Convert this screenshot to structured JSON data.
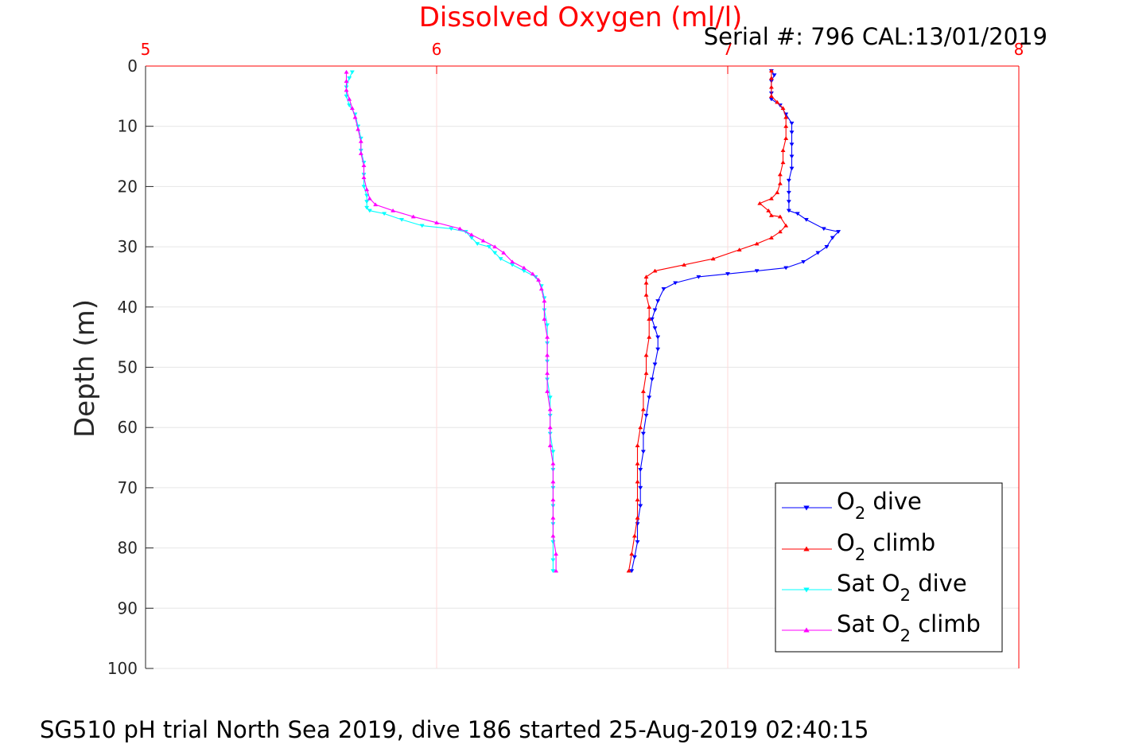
{
  "chart_data": {
    "type": "line",
    "title": "Dissolved Oxygen (ml/l)",
    "subtitle": "Serial #: 796  CAL:13/01/2019",
    "footer": "SG510 pH trial North Sea 2019, dive 186 started 25-Aug-2019 02:40:15",
    "xlabel": "",
    "ylabel": "Depth (m)",
    "xlim": [
      5,
      8
    ],
    "ylim": [
      0,
      100
    ],
    "y_reversed": true,
    "x_axis_position": "top",
    "x_ticks": [
      "5",
      "6",
      "7",
      "8"
    ],
    "y_ticks": [
      "0",
      "10",
      "20",
      "30",
      "40",
      "50",
      "60",
      "70",
      "80",
      "90",
      "100"
    ],
    "grid": true,
    "legend_position": "bottom-right",
    "series": [
      {
        "name": "O2 dive",
        "legend_prefix": "O",
        "legend_sub": "2",
        "legend_suffix": " dive",
        "color": "#0000ff",
        "marker": "triangle-down",
        "points": [
          [
            7.15,
            0.8
          ],
          [
            7.16,
            1.5
          ],
          [
            7.15,
            2.5
          ],
          [
            7.15,
            4.5
          ],
          [
            7.15,
            5.5
          ],
          [
            7.18,
            6.5
          ],
          [
            7.2,
            8.0
          ],
          [
            7.22,
            9.5
          ],
          [
            7.22,
            11.0
          ],
          [
            7.22,
            13.0
          ],
          [
            7.22,
            15.0
          ],
          [
            7.22,
            17.0
          ],
          [
            7.21,
            19.0
          ],
          [
            7.21,
            21.0
          ],
          [
            7.21,
            22.5
          ],
          [
            7.21,
            24.0
          ],
          [
            7.24,
            24.5
          ],
          [
            7.27,
            25.5
          ],
          [
            7.33,
            27.0
          ],
          [
            7.38,
            27.5
          ],
          [
            7.36,
            28.5
          ],
          [
            7.34,
            30.0
          ],
          [
            7.31,
            31.0
          ],
          [
            7.26,
            32.5
          ],
          [
            7.2,
            33.5
          ],
          [
            7.1,
            34.0
          ],
          [
            7.0,
            34.5
          ],
          [
            6.9,
            35.0
          ],
          [
            6.82,
            36.0
          ],
          [
            6.78,
            37.0
          ],
          [
            6.76,
            39.0
          ],
          [
            6.75,
            40.5
          ],
          [
            6.74,
            42.0
          ],
          [
            6.75,
            43.5
          ],
          [
            6.76,
            45.0
          ],
          [
            6.76,
            47.0
          ],
          [
            6.75,
            49.5
          ],
          [
            6.74,
            52.0
          ],
          [
            6.73,
            55.0
          ],
          [
            6.72,
            58.0
          ],
          [
            6.71,
            61.0
          ],
          [
            6.71,
            64.0
          ],
          [
            6.7,
            67.0
          ],
          [
            6.7,
            70.0
          ],
          [
            6.7,
            73.0
          ],
          [
            6.69,
            76.0
          ],
          [
            6.69,
            79.0
          ],
          [
            6.68,
            81.5
          ],
          [
            6.67,
            83.8
          ]
        ]
      },
      {
        "name": "O2 climb",
        "legend_prefix": "O",
        "legend_sub": "2",
        "legend_suffix": " climb",
        "color": "#ff0000",
        "marker": "triangle-up",
        "points": [
          [
            6.66,
            83.8
          ],
          [
            6.67,
            81.0
          ],
          [
            6.68,
            78.0
          ],
          [
            6.69,
            75.0
          ],
          [
            6.69,
            72.0
          ],
          [
            6.69,
            69.0
          ],
          [
            6.69,
            66.0
          ],
          [
            6.69,
            63.0
          ],
          [
            6.7,
            60.0
          ],
          [
            6.71,
            57.0
          ],
          [
            6.71,
            54.0
          ],
          [
            6.72,
            51.0
          ],
          [
            6.72,
            48.0
          ],
          [
            6.73,
            45.0
          ],
          [
            6.73,
            42.0
          ],
          [
            6.73,
            40.0
          ],
          [
            6.72,
            38.0
          ],
          [
            6.72,
            36.0
          ],
          [
            6.72,
            35.0
          ],
          [
            6.75,
            34.0
          ],
          [
            6.85,
            33.0
          ],
          [
            6.95,
            32.0
          ],
          [
            7.04,
            30.5
          ],
          [
            7.1,
            29.5
          ],
          [
            7.15,
            28.5
          ],
          [
            7.18,
            27.5
          ],
          [
            7.2,
            26.5
          ],
          [
            7.18,
            25.0
          ],
          [
            7.15,
            24.8
          ],
          [
            7.14,
            24.0
          ],
          [
            7.11,
            22.8
          ],
          [
            7.15,
            22.0
          ],
          [
            7.17,
            21.0
          ],
          [
            7.18,
            19.5
          ],
          [
            7.18,
            18.0
          ],
          [
            7.19,
            16.0
          ],
          [
            7.19,
            14.0
          ],
          [
            7.2,
            12.0
          ],
          [
            7.2,
            10.0
          ],
          [
            7.2,
            8.5
          ],
          [
            7.19,
            7.0
          ],
          [
            7.17,
            6.0
          ],
          [
            7.15,
            5.0
          ],
          [
            7.15,
            3.5
          ],
          [
            7.15,
            2.0
          ],
          [
            7.15,
            0.8
          ]
        ]
      },
      {
        "name": "Sat O2 dive",
        "legend_prefix": "Sat O",
        "legend_sub": "2",
        "legend_suffix": " dive",
        "color": "#00ffff",
        "marker": "triangle-down",
        "points": [
          [
            5.71,
            1.0
          ],
          [
            5.7,
            2.0
          ],
          [
            5.69,
            3.5
          ],
          [
            5.69,
            5.0
          ],
          [
            5.7,
            6.5
          ],
          [
            5.72,
            8.0
          ],
          [
            5.73,
            10.0
          ],
          [
            5.74,
            12.0
          ],
          [
            5.74,
            14.0
          ],
          [
            5.75,
            16.0
          ],
          [
            5.75,
            18.0
          ],
          [
            5.75,
            20.0
          ],
          [
            5.76,
            21.5
          ],
          [
            5.76,
            22.5
          ],
          [
            5.76,
            23.5
          ],
          [
            5.77,
            24.0
          ],
          [
            5.82,
            24.5
          ],
          [
            5.88,
            25.5
          ],
          [
            5.95,
            26.5
          ],
          [
            6.05,
            27.0
          ],
          [
            6.1,
            27.5
          ],
          [
            6.12,
            28.5
          ],
          [
            6.14,
            29.5
          ],
          [
            6.18,
            30.0
          ],
          [
            6.2,
            31.0
          ],
          [
            6.22,
            32.0
          ],
          [
            6.26,
            33.0
          ],
          [
            6.3,
            34.0
          ],
          [
            6.34,
            35.0
          ],
          [
            6.36,
            36.5
          ],
          [
            6.37,
            38.5
          ],
          [
            6.37,
            40.5
          ],
          [
            6.38,
            43.0
          ],
          [
            6.38,
            46.0
          ],
          [
            6.38,
            49.0
          ],
          [
            6.38,
            52.0
          ],
          [
            6.39,
            55.0
          ],
          [
            6.39,
            58.0
          ],
          [
            6.39,
            61.0
          ],
          [
            6.4,
            64.0
          ],
          [
            6.4,
            67.0
          ],
          [
            6.4,
            70.0
          ],
          [
            6.4,
            73.0
          ],
          [
            6.4,
            76.0
          ],
          [
            6.4,
            79.0
          ],
          [
            6.4,
            82.0
          ],
          [
            6.4,
            83.8
          ]
        ]
      },
      {
        "name": "Sat O2 climb",
        "legend_prefix": "Sat O",
        "legend_sub": "2",
        "legend_suffix": " climb",
        "color": "#ff00ff",
        "marker": "triangle-up",
        "points": [
          [
            6.41,
            83.8
          ],
          [
            6.41,
            81.0
          ],
          [
            6.4,
            78.0
          ],
          [
            6.4,
            75.0
          ],
          [
            6.4,
            72.0
          ],
          [
            6.4,
            69.0
          ],
          [
            6.4,
            66.0
          ],
          [
            6.39,
            63.0
          ],
          [
            6.39,
            60.0
          ],
          [
            6.39,
            57.0
          ],
          [
            6.38,
            54.0
          ],
          [
            6.38,
            51.0
          ],
          [
            6.38,
            48.0
          ],
          [
            6.38,
            45.0
          ],
          [
            6.37,
            42.0
          ],
          [
            6.37,
            39.0
          ],
          [
            6.36,
            37.0
          ],
          [
            6.35,
            35.5
          ],
          [
            6.33,
            34.5
          ],
          [
            6.3,
            33.5
          ],
          [
            6.26,
            32.5
          ],
          [
            6.23,
            31.0
          ],
          [
            6.2,
            30.0
          ],
          [
            6.16,
            29.0
          ],
          [
            6.12,
            28.0
          ],
          [
            6.08,
            27.0
          ],
          [
            6.0,
            26.0
          ],
          [
            5.92,
            25.0
          ],
          [
            5.85,
            24.0
          ],
          [
            5.79,
            23.0
          ],
          [
            5.77,
            22.0
          ],
          [
            5.76,
            20.5
          ],
          [
            5.75,
            18.5
          ],
          [
            5.75,
            16.5
          ],
          [
            5.74,
            14.5
          ],
          [
            5.74,
            12.5
          ],
          [
            5.73,
            10.5
          ],
          [
            5.72,
            8.5
          ],
          [
            5.71,
            7.0
          ],
          [
            5.7,
            5.5
          ],
          [
            5.69,
            4.0
          ],
          [
            5.69,
            2.5
          ],
          [
            5.69,
            1.0
          ]
        ]
      }
    ]
  }
}
